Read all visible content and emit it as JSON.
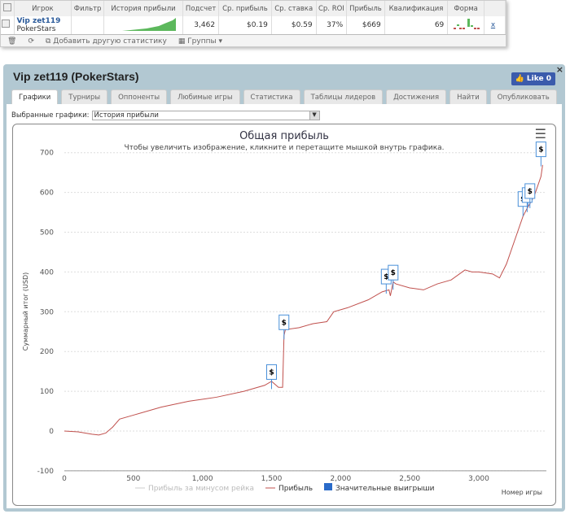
{
  "table": {
    "headers": [
      "Игрок",
      "Фильтр",
      "История прибыли",
      "Подсчет",
      "Ср. прибыль",
      "Ср. ставка",
      "Ср. ROI",
      "Прибыль",
      "Квалификация",
      "Форма"
    ],
    "row": {
      "player": "Vip zet119",
      "site": "PokerStars",
      "count": "3,462",
      "avg_profit": "$0.19",
      "avg_stake": "$0.59",
      "roi": "37%",
      "profit": "$669",
      "qualification": "69",
      "remove": "x"
    },
    "tools": {
      "add": "Добавить другую статистику",
      "groups": "Группы"
    }
  },
  "panel": {
    "title": "Vip zet119 (PokerStars)",
    "like": "Like 0",
    "close": "×",
    "tabs": [
      "Графики",
      "Турниры",
      "Оппоненты",
      "Любимые игры",
      "Статистика",
      "Таблицы лидеров",
      "Достижения",
      "Найти",
      "Опубликовать"
    ],
    "select_label": "Выбранные графики:",
    "select_value": "История прибыли"
  },
  "chart_data": {
    "type": "line",
    "title": "Общая прибыль",
    "subtitle": "Чтобы увеличить изображение, кликните и перетащите мышкой внутрь графика.",
    "xlabel": "Номер игры",
    "ylabel": "Суммарный итог (USD)",
    "xlim": [
      0,
      3462
    ],
    "ylim": [
      -100,
      700
    ],
    "xticks": [
      0,
      500,
      1000,
      1500,
      2000,
      2500,
      3000
    ],
    "xtick_labels": [
      "0",
      "500",
      "1,000",
      "1,500",
      "2,000",
      "2,500",
      "3,000"
    ],
    "yticks": [
      -100,
      0,
      100,
      200,
      300,
      400,
      500,
      600,
      700
    ],
    "legend": [
      "Прибыль за минусом рейка",
      "Прибыль",
      "Значительные выигрыши"
    ],
    "series": [
      {
        "name": "Прибыль",
        "color": "#c0504d",
        "x": [
          0,
          100,
          200,
          250,
          300,
          350,
          400,
          500,
          700,
          900,
          1100,
          1300,
          1450,
          1500,
          1550,
          1580,
          1590,
          1600,
          1700,
          1800,
          1900,
          1950,
          2050,
          2200,
          2300,
          2350,
          2360,
          2380,
          2400,
          2500,
          2600,
          2700,
          2800,
          2900,
          2950,
          3000,
          3100,
          3150,
          3200,
          3280,
          3320,
          3350,
          3400,
          3450,
          3462
        ],
        "y": [
          0,
          -2,
          -8,
          -10,
          -5,
          10,
          30,
          40,
          60,
          75,
          85,
          100,
          115,
          125,
          110,
          110,
          240,
          255,
          260,
          270,
          275,
          300,
          310,
          330,
          350,
          355,
          340,
          375,
          370,
          360,
          355,
          370,
          380,
          405,
          400,
          400,
          395,
          385,
          420,
          500,
          540,
          560,
          590,
          640,
          669
        ]
      }
    ],
    "markers": {
      "label": "$",
      "x": [
        1500,
        1590,
        2330,
        2380,
        3320,
        3350,
        3370,
        3450
      ],
      "y": [
        130,
        255,
        370,
        380,
        565,
        575,
        585,
        690
      ]
    }
  }
}
